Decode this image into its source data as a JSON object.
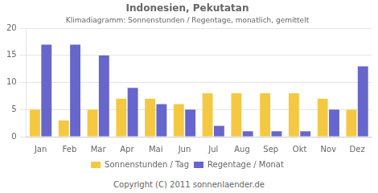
{
  "chart_data": {
    "type": "bar",
    "title": "Indonesien, Pekutatan",
    "subtitle": "Klimadiagramm: Sonnenstunden / Regentage, monatlich, gemittelt",
    "categories": [
      "Jan",
      "Feb",
      "Mar",
      "Apr",
      "Mai",
      "Jun",
      "Jul",
      "Aug",
      "Sep",
      "Okt",
      "Nov",
      "Dez"
    ],
    "series": [
      {
        "name": "Sonnenstunden / Tag",
        "color": "#F5C842",
        "values": [
          5,
          3,
          5,
          7,
          7,
          6,
          8,
          8,
          8,
          8,
          7,
          5
        ]
      },
      {
        "name": "Regentage / Monat",
        "color": "#6666CC",
        "values": [
          17,
          17,
          15,
          9,
          6,
          5,
          2,
          1,
          1,
          1,
          5,
          13
        ]
      }
    ],
    "ylim": [
      0,
      20
    ],
    "yticks": [
      0,
      5,
      10,
      15,
      20
    ],
    "grid": true,
    "legend": "bottom",
    "annotations": [
      "Copyright (C) 2011 sonnenlaender.de"
    ]
  }
}
